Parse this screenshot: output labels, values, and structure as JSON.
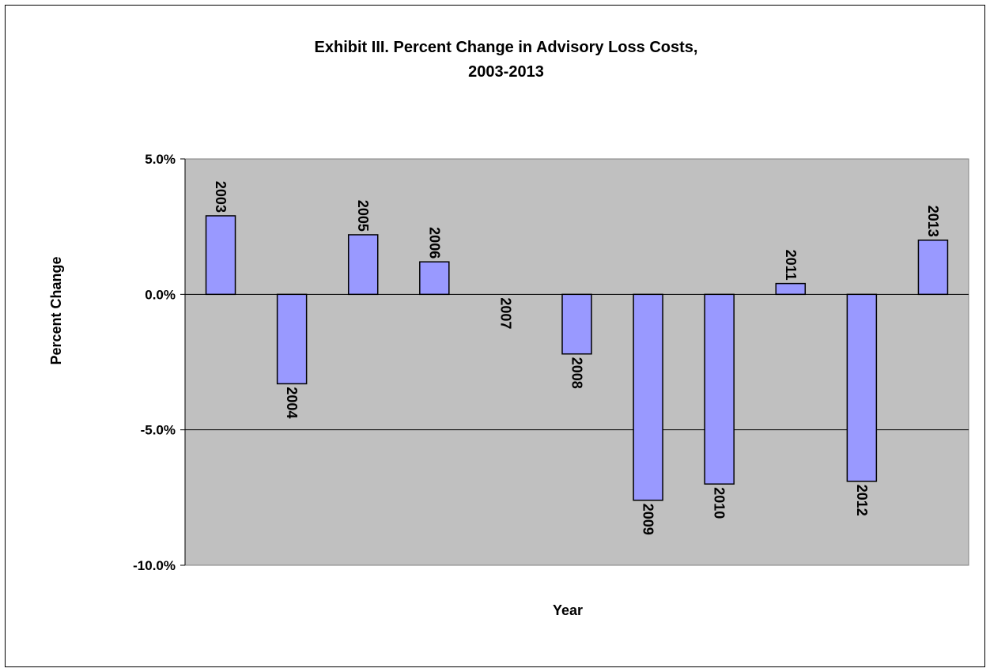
{
  "chart_data": {
    "type": "bar",
    "title": [
      "Exhibit III. Percent Change in Advisory Loss Costs,",
      "2003-2013"
    ],
    "xlabel": "Year",
    "ylabel": "Percent Change",
    "categories": [
      "2003",
      "2004",
      "2005",
      "2006",
      "2007",
      "2008",
      "2009",
      "2010",
      "2011",
      "2012",
      "2013"
    ],
    "values": [
      2.9,
      -3.3,
      2.2,
      1.2,
      0.0,
      -2.2,
      -7.6,
      -7.0,
      0.4,
      -6.9,
      2.0
    ],
    "data_labels": [
      "2003",
      "2004",
      "2005",
      "2006",
      "2007",
      "2008",
      "2009",
      "2010",
      "2011",
      "2012",
      "2013"
    ],
    "ylim": [
      -10,
      5
    ],
    "yticks": [
      5,
      0,
      -5,
      -10
    ],
    "ytick_labels": [
      "5.0%",
      "0.0%",
      "-5.0%",
      "-10.0%"
    ],
    "grid": true,
    "legend": "none",
    "colors": {
      "bar_fill": "#9999FF",
      "bar_stroke": "#000000",
      "plot_background": "#C0C0C0",
      "gridline": "#000000"
    }
  }
}
